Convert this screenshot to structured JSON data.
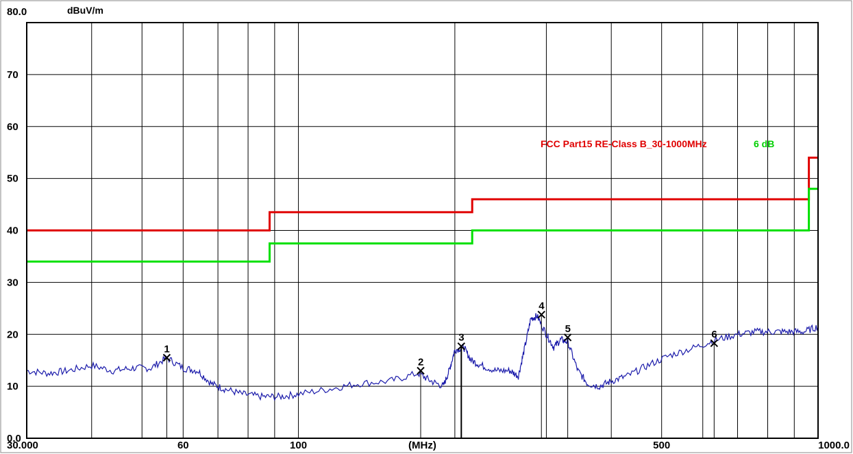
{
  "chart_data": {
    "type": "line",
    "x_scale": "log",
    "xlim": [
      30,
      1000
    ],
    "ylim": [
      0,
      80
    ],
    "y_unit": "dBuV/m",
    "x_unit": "(MHz)",
    "x_ticks": [
      "30.000",
      "60",
      "100",
      "500",
      "1000.0"
    ],
    "y_ticks": [
      "0.0",
      "10",
      "20",
      "30",
      "40",
      "50",
      "60",
      "70",
      "80.0"
    ],
    "grid": true,
    "limit_lines": [
      {
        "name": "FCC Part15 RE-Class B_30-1000MHz",
        "color": "#e00000",
        "points": [
          [
            30,
            40
          ],
          [
            88,
            40
          ],
          [
            88,
            43.5
          ],
          [
            216,
            43.5
          ],
          [
            216,
            46
          ],
          [
            960,
            46
          ],
          [
            960,
            54
          ],
          [
            1000,
            54
          ]
        ]
      },
      {
        "name": "6 dB",
        "color": "#00e000",
        "points": [
          [
            30,
            34
          ],
          [
            88,
            34
          ],
          [
            88,
            37.5
          ],
          [
            216,
            37.5
          ],
          [
            216,
            40
          ],
          [
            960,
            40
          ],
          [
            960,
            48
          ],
          [
            1000,
            48
          ]
        ]
      }
    ],
    "series": [
      {
        "color": "#1a1aaa",
        "x": [
          30,
          33,
          36,
          40,
          44,
          48,
          52,
          55.8,
          60,
          64,
          68,
          72,
          78,
          85,
          92,
          100,
          115,
          130,
          150,
          170,
          180,
          190,
          195,
          200,
          208,
          215,
          225,
          240,
          255,
          265,
          272,
          280,
          288,
          300,
          310,
          320,
          330,
          345,
          360,
          380,
          400,
          430,
          470,
          520,
          580,
          640,
          700,
          760,
          820,
          880,
          940,
          1000
        ],
        "values": [
          13,
          12.5,
          13,
          14,
          13,
          13.5,
          13.5,
          15.5,
          13.5,
          13,
          10.5,
          9.5,
          8.5,
          8,
          8,
          8.5,
          9.5,
          10.5,
          11,
          12.5,
          11,
          10,
          13,
          17,
          17.5,
          15,
          14,
          13,
          13,
          12,
          17,
          23,
          23.5,
          20,
          17.5,
          19,
          18.5,
          13,
          10.5,
          10,
          11,
          12,
          14,
          16,
          17.5,
          19,
          20,
          20.5,
          20.5,
          20.5,
          20.5,
          21.5
        ]
      }
    ],
    "markers": [
      {
        "label": "1",
        "x": 55.8,
        "y": 15.5
      },
      {
        "label": "2",
        "x": 171.9,
        "y": 13.0
      },
      {
        "label": "3",
        "x": 205.8,
        "y": 17.7
      },
      {
        "label": "4",
        "x": 293.5,
        "y": 23.8
      },
      {
        "label": "5",
        "x": 329.8,
        "y": 19.4
      },
      {
        "label": "6",
        "x": 631.0,
        "y": 18.3
      }
    ]
  }
}
